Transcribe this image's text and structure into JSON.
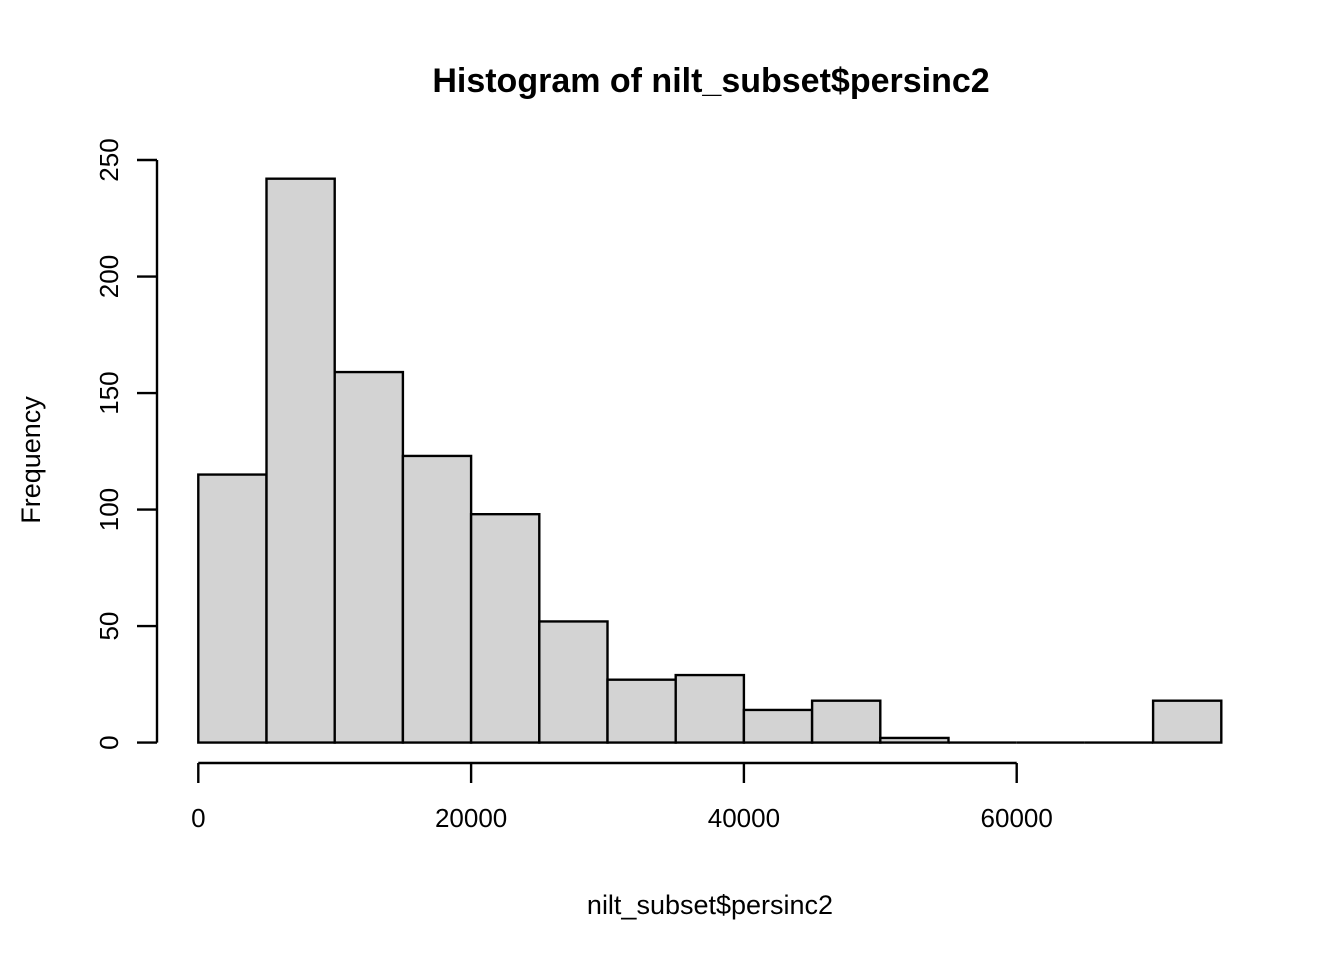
{
  "chart_data": {
    "type": "bar",
    "subtype": "histogram",
    "title": "Histogram of nilt_subset$persinc2",
    "xlabel": "nilt_subset$persinc2",
    "ylabel": "Frequency",
    "bin_width": 5000,
    "breaks": [
      0,
      5000,
      10000,
      15000,
      20000,
      25000,
      30000,
      35000,
      40000,
      45000,
      50000,
      55000,
      60000,
      65000,
      70000,
      75000
    ],
    "counts": [
      115,
      242,
      159,
      123,
      98,
      52,
      27,
      29,
      14,
      18,
      2,
      0,
      0,
      0,
      18
    ],
    "x_ticks": [
      0,
      20000,
      40000,
      60000
    ],
    "x_tick_labels": [
      "0",
      "20000",
      "40000",
      "60000"
    ],
    "y_ticks": [
      0,
      50,
      100,
      150,
      200,
      250
    ],
    "y_tick_labels": [
      "0",
      "50",
      "100",
      "150",
      "200",
      "250"
    ],
    "xlim": [
      0,
      75000
    ],
    "ylim": [
      0,
      250
    ],
    "grid": "off",
    "legend": "none",
    "colors": {
      "background": "#ffffff",
      "bar_fill": "#d3d3d3",
      "bar_stroke": "#000000",
      "axis": "#000000",
      "text": "#000000"
    }
  }
}
